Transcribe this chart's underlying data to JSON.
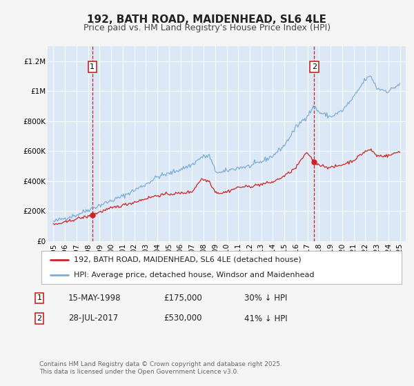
{
  "title": "192, BATH ROAD, MAIDENHEAD, SL6 4LE",
  "subtitle": "Price paid vs. HM Land Registry's House Price Index (HPI)",
  "fig_bg_color": "#f5f5f5",
  "plot_bg_color": "#dce8f5",
  "hpi_color": "#7aadd4",
  "price_color": "#cc2222",
  "vline_color": "#cc2222",
  "marker1_year": 1998.37,
  "marker1_value": 175000,
  "marker1_label": "1",
  "marker2_year": 2017.57,
  "marker2_value": 530000,
  "marker2_label": "2",
  "ylim_min": 0,
  "ylim_max": 1300000,
  "xlim_min": 1994.5,
  "xlim_max": 2025.5,
  "yticks": [
    0,
    200000,
    400000,
    600000,
    800000,
    1000000,
    1200000
  ],
  "ytick_labels": [
    "£0",
    "£200K",
    "£400K",
    "£600K",
    "£800K",
    "£1M",
    "£1.2M"
  ],
  "xticks": [
    1995,
    1996,
    1997,
    1998,
    1999,
    2000,
    2001,
    2002,
    2003,
    2004,
    2005,
    2006,
    2007,
    2008,
    2009,
    2010,
    2011,
    2012,
    2013,
    2014,
    2015,
    2016,
    2017,
    2018,
    2019,
    2020,
    2021,
    2022,
    2023,
    2024,
    2025
  ],
  "legend_price_label": "192, BATH ROAD, MAIDENHEAD, SL6 4LE (detached house)",
  "legend_hpi_label": "HPI: Average price, detached house, Windsor and Maidenhead",
  "annotation1_date": "15-MAY-1998",
  "annotation1_price": "£175,000",
  "annotation1_hpi": "30% ↓ HPI",
  "annotation2_date": "28-JUL-2017",
  "annotation2_price": "£530,000",
  "annotation2_hpi": "41% ↓ HPI",
  "footer": "Contains HM Land Registry data © Crown copyright and database right 2025.\nThis data is licensed under the Open Government Licence v3.0.",
  "title_fontsize": 11,
  "subtitle_fontsize": 9,
  "tick_fontsize": 7.5,
  "legend_fontsize": 8,
  "ann_fontsize": 8.5,
  "footer_fontsize": 6.5
}
